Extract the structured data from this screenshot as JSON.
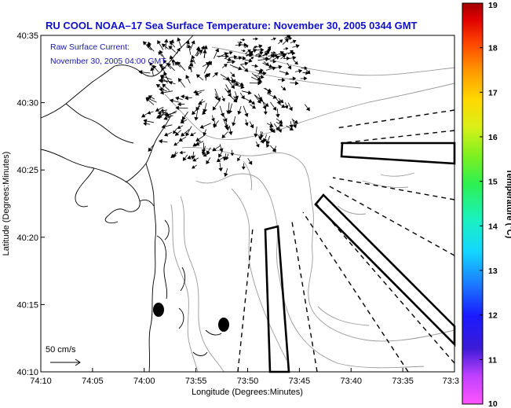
{
  "title": "RU COOL  NOAA–17  Sea Surface Temperature:  November 30, 2005 0344 GMT",
  "annotation": {
    "line1": "Raw Surface Current:",
    "line2": "November 30, 2005 04:00 GMT"
  },
  "axes": {
    "xlabel": "Longitude (Degrees:Minutes)",
    "ylabel": "Latitude (Degrees:Minutes)",
    "x_ticks": [
      "74:10",
      "74:05",
      "74:00",
      "73:55",
      "73:50",
      "73:45",
      "73:40",
      "73:35",
      "73:3"
    ],
    "y_ticks": [
      "40:35",
      "40:30",
      "40:25",
      "40:20",
      "40:15",
      "40:10"
    ]
  },
  "scale_label": "50 cm/s",
  "colorbar": {
    "label": "Temperature (°C)",
    "ticks": [
      "19",
      "18",
      "17",
      "16",
      "15",
      "14",
      "13",
      "12",
      "11",
      "10"
    ],
    "min": 10,
    "max": 19
  },
  "colors": {
    "title": "#1010c8",
    "annotation": "#1818a8",
    "coast": "#000000",
    "bathymetry": "#9a9a9a",
    "vectors": "#000000"
  },
  "chart_data": {
    "type": "map",
    "title": "RU COOL  NOAA–17  Sea Surface Temperature:  November 30, 2005 0344 GMT",
    "xlabel": "Longitude (Degrees:Minutes)",
    "ylabel": "Latitude (Degrees:Minutes)",
    "xlim_minutes_west": [
      -4450,
      -4410
    ],
    "ylim_minutes_north": [
      2410,
      2435
    ],
    "vector_scale": "50 cm/s",
    "markers": [
      {
        "name": "station-west",
        "lon": "73:59",
        "lat": "40:14.7"
      },
      {
        "name": "station-east",
        "lon": "73:52",
        "lat": "40:13.5"
      }
    ],
    "colorbar_range_c": [
      10,
      19
    ]
  }
}
